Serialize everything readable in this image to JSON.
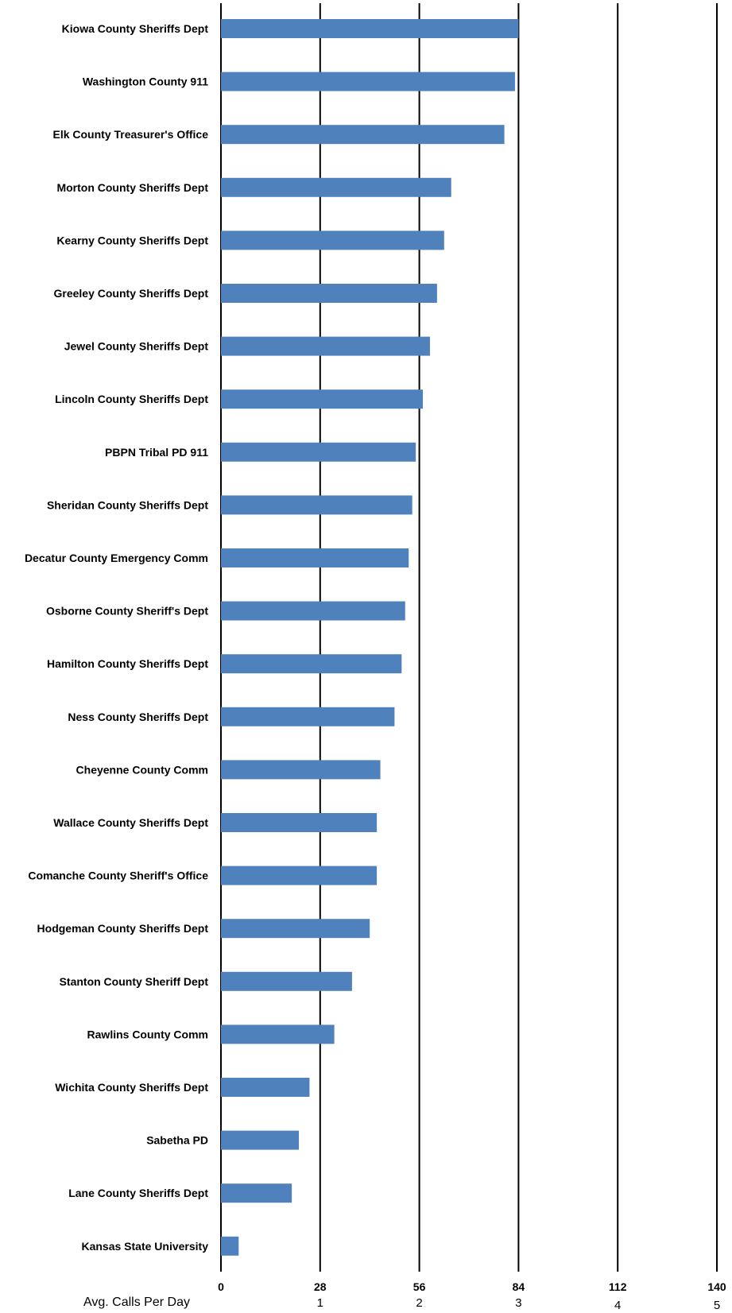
{
  "chart_data": {
    "type": "bar",
    "orientation": "horizontal",
    "categories": [
      "Kiowa County Sheriffs Dept",
      "Washington County 911",
      "Elk County Treasurer's Office",
      "Morton County Sheriffs Dept",
      "Kearny County Sheriffs Dept",
      "Greeley County Sheriffs Dept",
      "Jewel County Sheriffs Dept",
      "Lincoln County Sheriffs Dept",
      "PBPN Tribal PD 911",
      "Sheridan County Sheriffs Dept",
      "Decatur County Emergency Comm",
      "Osborne County Sheriff's Dept",
      "Hamilton County Sheriffs Dept",
      "Ness County Sheriffs Dept",
      "Cheyenne County Comm",
      "Wallace County Sheriffs Dept",
      "Comanche County Sheriff's Office",
      "Hodgeman County Sheriffs Dept",
      "Stanton County Sheriff Dept",
      "Rawlins County Comm",
      "Wichita County Sheriffs Dept",
      "Sabetha PD",
      "Lane County Sheriffs Dept",
      "Kansas State University"
    ],
    "series": [
      {
        "values": [
          84,
          83,
          80,
          65,
          63,
          61,
          59,
          57,
          55,
          54,
          53,
          52,
          51,
          49,
          45,
          44,
          44,
          42,
          37,
          32,
          25,
          22,
          20,
          5
        ]
      }
    ],
    "xlim": [
      0,
      140
    ],
    "x_ticks": [
      0,
      28,
      56,
      84,
      112,
      140
    ],
    "x_ticks_secondary": [
      1,
      2,
      3,
      4,
      5
    ],
    "xlabel": "Avg. Calls Per Day",
    "ylabel": "",
    "title": "",
    "grid": "vertical",
    "bar_color": "#4F81BD"
  }
}
